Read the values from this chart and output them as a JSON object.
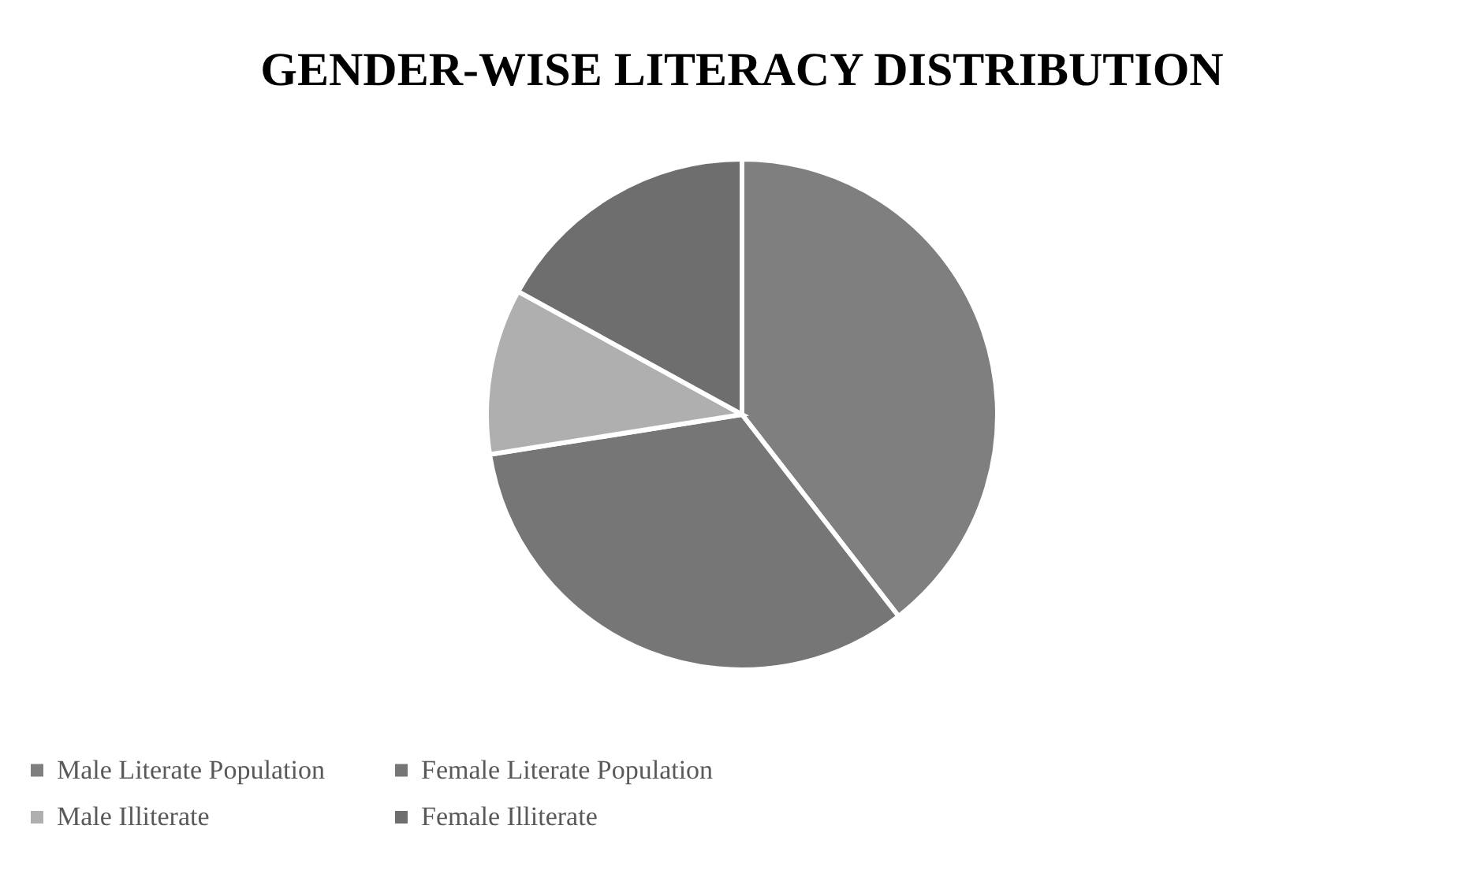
{
  "chart_data": {
    "type": "pie",
    "title": "GENDER-WISE LITERACY DISTRIBUTION",
    "categories": [
      "Male Literate Population",
      "Female Literate Population",
      "Male Illiterate",
      "Female Illiterate"
    ],
    "values": [
      39.5,
      33.0,
      10.5,
      17.0
    ],
    "colors": [
      "#7f7f7f",
      "#767676",
      "#afafaf",
      "#6e6e6e"
    ],
    "legend": "bottom"
  }
}
